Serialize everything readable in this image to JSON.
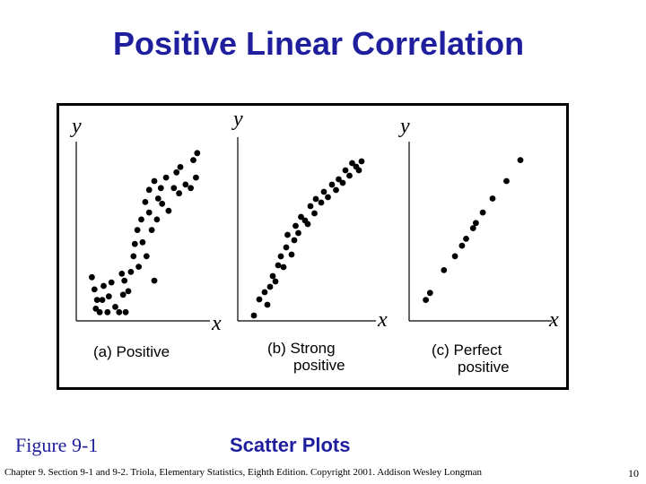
{
  "title": "Positive Linear Correlation",
  "figure_label": "Figure 9-1",
  "figure_title": "Scatter Plots",
  "footer": "Chapter 9.  Section 9-1 and 9-2.  Triola, Elementary Statistics, Eighth Edition. Copyright  2001.  Addison Wesley Longman",
  "page_number": "10",
  "colors": {
    "title": "#1f1f9e",
    "points": "#000000",
    "frame": "#000000"
  },
  "chart_data": [
    {
      "type": "scatter",
      "caption": "(a) Positive",
      "xlabel": "x",
      "ylabel": "y",
      "xlim": [
        0,
        100
      ],
      "ylim": [
        0,
        100
      ],
      "grid": false,
      "points": [
        [
          12,
          25
        ],
        [
          14,
          18
        ],
        [
          16,
          12
        ],
        [
          15,
          7
        ],
        [
          18,
          5
        ],
        [
          20,
          12
        ],
        [
          21,
          20
        ],
        [
          24,
          5
        ],
        [
          25,
          14
        ],
        [
          27,
          22
        ],
        [
          30,
          8
        ],
        [
          33,
          5
        ],
        [
          36,
          15
        ],
        [
          35,
          27
        ],
        [
          37,
          23
        ],
        [
          38,
          5
        ],
        [
          40,
          17
        ],
        [
          42,
          28
        ],
        [
          44,
          37
        ],
        [
          45,
          44
        ],
        [
          47,
          52
        ],
        [
          48,
          31
        ],
        [
          50,
          58
        ],
        [
          51,
          45
        ],
        [
          53,
          68
        ],
        [
          54,
          37
        ],
        [
          56,
          62
        ],
        [
          56,
          75
        ],
        [
          58,
          52
        ],
        [
          60,
          23
        ],
        [
          60,
          80
        ],
        [
          62,
          58
        ],
        [
          63,
          70
        ],
        [
          65,
          76
        ],
        [
          66,
          67
        ],
        [
          69,
          82
        ],
        [
          71,
          63
        ],
        [
          75,
          76
        ],
        [
          77,
          85
        ],
        [
          79,
          73
        ],
        [
          80,
          88
        ],
        [
          84,
          78
        ],
        [
          88,
          76
        ],
        [
          92,
          82
        ],
        [
          90,
          92
        ],
        [
          93,
          96
        ]
      ]
    },
    {
      "type": "scatter",
      "caption": "(b) Strong\npositive",
      "xlabel": "x",
      "ylabel": "y",
      "xlim": [
        0,
        100
      ],
      "ylim": [
        0,
        100
      ],
      "grid": false,
      "points": [
        [
          12,
          3
        ],
        [
          16,
          12
        ],
        [
          20,
          16
        ],
        [
          22,
          9
        ],
        [
          24,
          19
        ],
        [
          26,
          25
        ],
        [
          28,
          22
        ],
        [
          30,
          31
        ],
        [
          32,
          36
        ],
        [
          34,
          30
        ],
        [
          36,
          41
        ],
        [
          37,
          48
        ],
        [
          40,
          37
        ],
        [
          42,
          45
        ],
        [
          43,
          53
        ],
        [
          45,
          49
        ],
        [
          47,
          58
        ],
        [
          50,
          56
        ],
        [
          52,
          54
        ],
        [
          54,
          64
        ],
        [
          57,
          60
        ],
        [
          58,
          68
        ],
        [
          62,
          66
        ],
        [
          64,
          72
        ],
        [
          67,
          69
        ],
        [
          70,
          76
        ],
        [
          73,
          73
        ],
        [
          75,
          79
        ],
        [
          78,
          77
        ],
        [
          80,
          84
        ],
        [
          83,
          81
        ],
        [
          85,
          88
        ],
        [
          88,
          86
        ],
        [
          90,
          84
        ],
        [
          92,
          89
        ]
      ]
    },
    {
      "type": "scatter",
      "caption": "(c) Perfect\npositive",
      "xlabel": "x",
      "ylabel": "y",
      "xlim": [
        0,
        100
      ],
      "ylim": [
        0,
        100
      ],
      "grid": false,
      "points": [
        [
          12,
          12
        ],
        [
          15,
          16
        ],
        [
          25,
          29
        ],
        [
          33,
          37
        ],
        [
          38,
          43
        ],
        [
          41,
          47
        ],
        [
          46,
          53
        ],
        [
          48,
          56
        ],
        [
          53,
          62
        ],
        [
          60,
          70
        ],
        [
          70,
          80
        ],
        [
          80,
          92
        ]
      ]
    }
  ]
}
